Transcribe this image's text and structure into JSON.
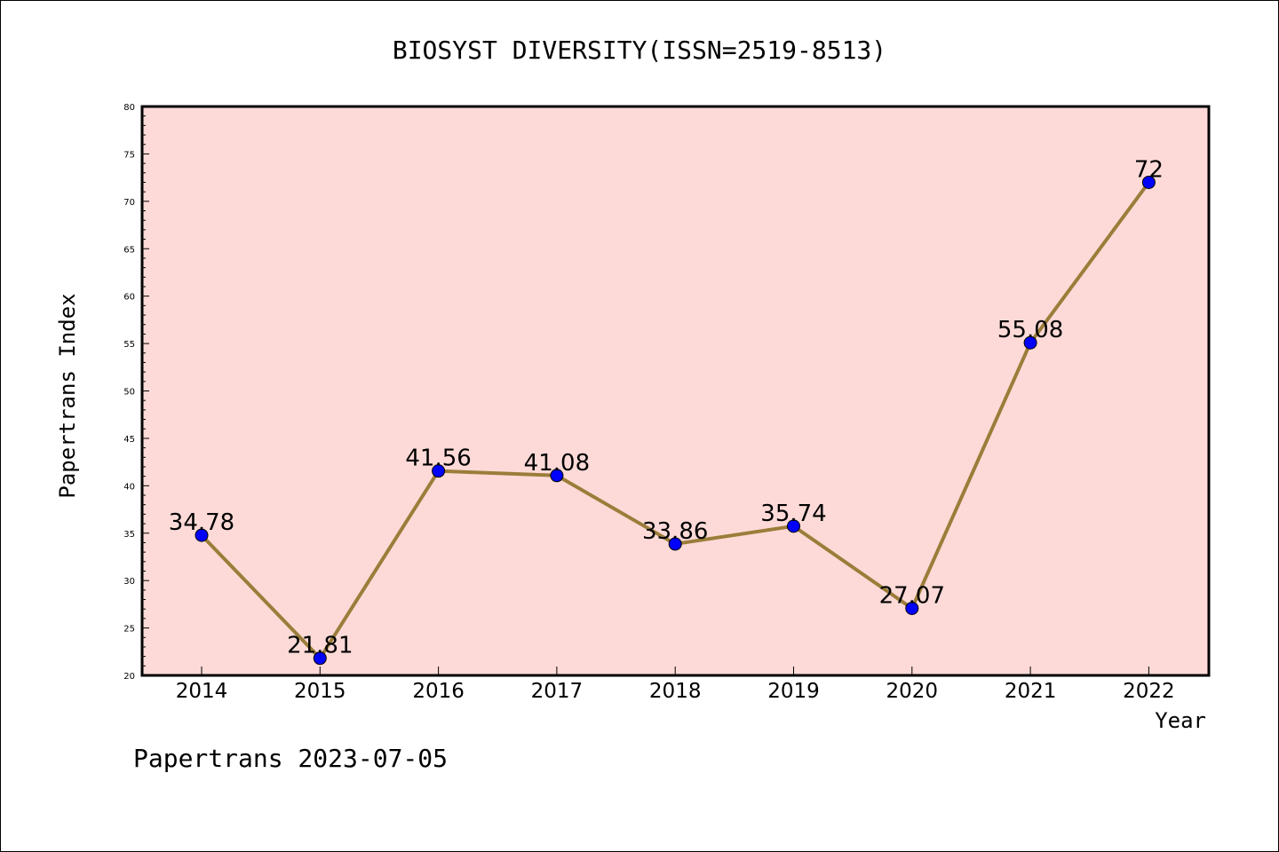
{
  "chart_data": {
    "type": "line",
    "title": "BIOSYST DIVERSITY(ISSN=2519-8513)",
    "xlabel": "Year",
    "ylabel": "Papertrans Index",
    "categories": [
      "2014",
      "2015",
      "2016",
      "2017",
      "2018",
      "2019",
      "2020",
      "2021",
      "2022"
    ],
    "series": [
      {
        "values": [
          34.78,
          21.81,
          41.56,
          41.08,
          33.86,
          35.74,
          27.07,
          55.08,
          72
        ],
        "labels": [
          "34.78",
          "21.81",
          "41.56",
          "41.08",
          "33.86",
          "35.74",
          "27.07",
          "55.08",
          "72"
        ]
      }
    ],
    "ylim": [
      20,
      80
    ],
    "yticks": [
      "20",
      "25",
      "30",
      "35",
      "40",
      "45",
      "50",
      "55",
      "60",
      "65",
      "70",
      "75",
      "80"
    ],
    "grid": false,
    "colors": {
      "plot_background": "#fddad7",
      "line": "#9b7d3a",
      "marker": "#0000ff"
    }
  },
  "footer": "Papertrans 2023-07-05"
}
